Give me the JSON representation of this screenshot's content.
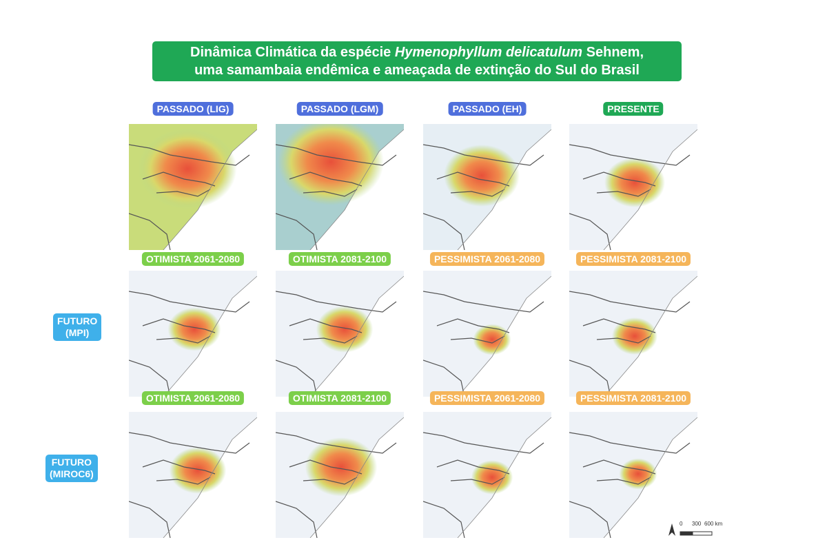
{
  "title": {
    "line1_start": "Dinâmica Climática da espécie ",
    "line1_species": "Hymenophyllum delicatulum",
    "line1_end": " Sehnem,",
    "line2": "uma samambaia endêmica e ameaçada de extinção do Sul do Brasil"
  },
  "rows": [
    {
      "panels": [
        "PASSADO (LIG)",
        "PASSADO (LGM)",
        "PASSADO (EH)",
        "PRESENTE"
      ]
    },
    {
      "label_lines": [
        "FUTURO",
        "(MPI)"
      ],
      "panels": [
        "OTIMISTA 2061-2080",
        "OTIMISTA 2081-2100",
        "PESSIMISTA 2061-2080",
        "PESSIMISTA 2081-2100"
      ]
    },
    {
      "label_lines": [
        "FUTURO",
        "(MIROC6)"
      ],
      "panels": [
        "OTIMISTA 2061-2080",
        "OTIMISTA 2081-2100",
        "PESSIMISTA 2061-2080",
        "PESSIMISTA 2081-2100"
      ]
    }
  ],
  "scale": {
    "labels": [
      "0",
      "300",
      "600 km"
    ]
  }
}
